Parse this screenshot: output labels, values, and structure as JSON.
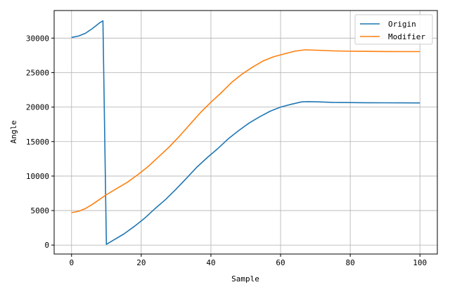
{
  "chart_data": {
    "type": "line",
    "xlabel": "Sample",
    "ylabel": "Angle",
    "xlim": [
      -5,
      105
    ],
    "ylim": [
      -1300,
      34000
    ],
    "xticks": [
      0,
      20,
      40,
      60,
      80,
      100
    ],
    "yticks": [
      0,
      5000,
      10000,
      15000,
      20000,
      25000,
      30000
    ],
    "grid": true,
    "legend_position": "top-right",
    "series": [
      {
        "name": "Origin",
        "color": "#1f77b4",
        "x": [
          0,
          2,
          4,
          6,
          8,
          9,
          10,
          12,
          15,
          18,
          21,
          24,
          27,
          30,
          33,
          36,
          39,
          42,
          45,
          48,
          51,
          54,
          57,
          60,
          63,
          66,
          68,
          71,
          75,
          80,
          85,
          90,
          95,
          100
        ],
        "y": [
          30100,
          30300,
          30700,
          31400,
          32200,
          32500,
          100,
          700,
          1600,
          2700,
          3900,
          5300,
          6600,
          8100,
          9700,
          11300,
          12700,
          14000,
          15400,
          16600,
          17700,
          18600,
          19400,
          20000,
          20400,
          20750,
          20800,
          20750,
          20680,
          20650,
          20630,
          20620,
          20610,
          20600
        ]
      },
      {
        "name": "Modifier",
        "color": "#ff7f0e",
        "x": [
          0,
          2,
          4,
          6,
          8,
          10,
          13,
          16,
          19,
          22,
          25,
          28,
          31,
          34,
          37,
          40,
          43,
          46,
          49,
          52,
          55,
          58,
          61,
          64,
          67,
          70,
          75,
          80,
          85,
          90,
          95,
          100
        ],
        "y": [
          4700,
          4900,
          5300,
          5900,
          6600,
          7300,
          8200,
          9100,
          10200,
          11400,
          12800,
          14200,
          15800,
          17500,
          19200,
          20700,
          22100,
          23600,
          24800,
          25800,
          26700,
          27300,
          27700,
          28100,
          28300,
          28250,
          28150,
          28100,
          28080,
          28060,
          28050,
          28050
        ]
      }
    ]
  }
}
